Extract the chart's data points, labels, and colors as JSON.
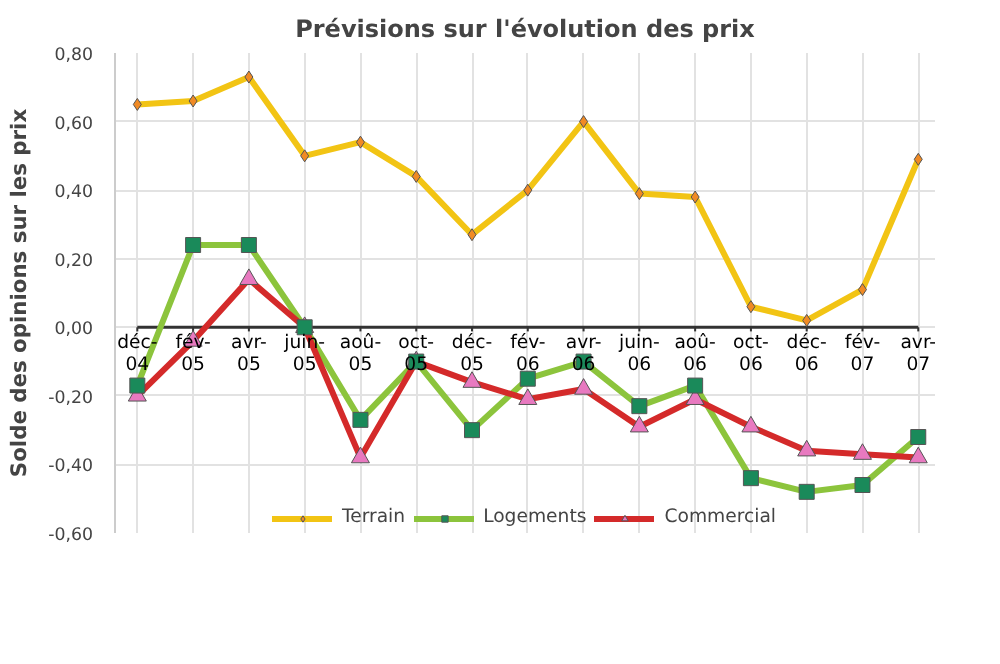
{
  "chart_data": {
    "type": "line",
    "title": "Prévisions sur l'évolution des prix",
    "ylabel": "Solde des opinions sur les prix",
    "categories": [
      "déc-04",
      "fév-05",
      "avr-05",
      "juin-05",
      "aoû-05",
      "oct-05",
      "déc-05",
      "fév-06",
      "avr-06",
      "juin-06",
      "aoû-06",
      "oct-06",
      "déc-06",
      "fév-07",
      "avr-07"
    ],
    "series": [
      {
        "name": "Terrain",
        "color": "#f2c414",
        "marker": "diamond",
        "values": [
          0.65,
          0.66,
          0.73,
          0.5,
          0.54,
          0.44,
          0.27,
          0.4,
          0.6,
          0.39,
          0.38,
          0.06,
          0.02,
          0.11,
          0.49
        ]
      },
      {
        "name": "Logements",
        "color": "#8cc43c",
        "marker": "square",
        "values": [
          -0.17,
          0.24,
          0.24,
          0.0,
          -0.27,
          -0.1,
          -0.3,
          -0.15,
          -0.1,
          -0.23,
          -0.17,
          -0.44,
          -0.48,
          -0.46,
          -0.32
        ]
      },
      {
        "name": "Commercial",
        "color": "#d42a2a",
        "marker": "triangle",
        "values": [
          -0.2,
          -0.04,
          0.14,
          0.0,
          -0.38,
          -0.1,
          -0.16,
          -0.21,
          -0.18,
          -0.29,
          -0.21,
          -0.29,
          -0.36,
          -0.37,
          -0.38
        ]
      }
    ],
    "ylim": [
      -0.6,
      0.8
    ],
    "yticks": [
      {
        "value": -0.6,
        "label": "-0,60"
      },
      {
        "value": -0.4,
        "label": "-0,40"
      },
      {
        "value": -0.2,
        "label": "-0,20"
      },
      {
        "value": 0,
        "label": "0,00"
      },
      {
        "value": 0.2,
        "label": "0,20"
      },
      {
        "value": 0.4,
        "label": "0,40"
      },
      {
        "value": 0.6,
        "label": "0,60"
      },
      {
        "value": 0.8,
        "label": "0,80"
      }
    ],
    "grid": true,
    "legend": "bottom"
  }
}
